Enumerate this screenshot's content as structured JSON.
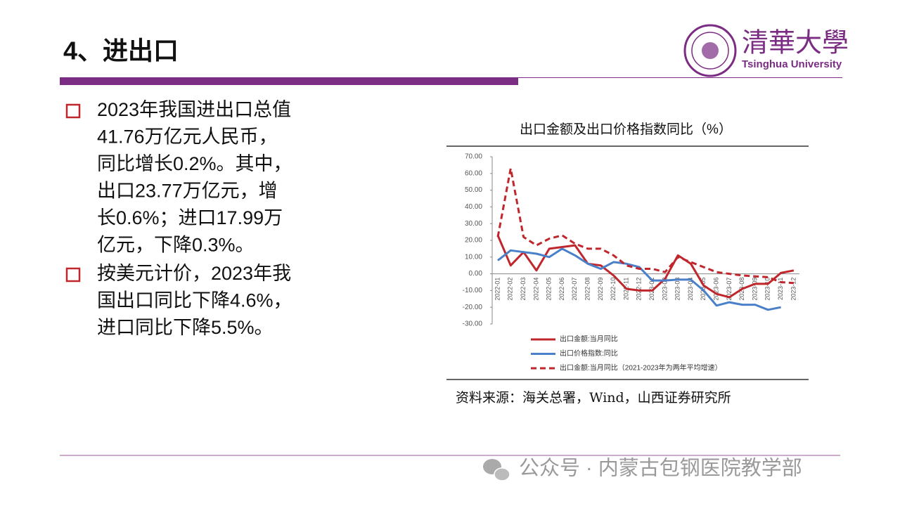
{
  "header": {
    "title": "4、进出口",
    "logo_cn": "清華大學",
    "logo_en": "Tsinghua University"
  },
  "bullets": [
    {
      "lines": [
        "2023年我国进出口总值",
        "41.76万亿元人民币，",
        "同比增长0.2%。其中，",
        "出口23.77万亿元，增",
        "长0.6%；进口17.99万",
        "亿元，下降0.3%。"
      ]
    },
    {
      "lines": [
        "按美元计价，2023年我",
        "国出口同比下降4.6%，",
        "进口同比下降5.5%。"
      ]
    }
  ],
  "chart_data": {
    "type": "line",
    "title": "出口金额及出口价格指数同比（%）",
    "source": "资料来源：海关总署，Wind，山西证券研究所",
    "categories": [
      "2022-01",
      "2022-02",
      "2022-03",
      "2022-04",
      "2022-05",
      "2022-06",
      "2022-07",
      "2022-08",
      "2022-09",
      "2022-10",
      "2022-11",
      "2022-12",
      "2023-01",
      "2023-02",
      "2023-03",
      "2023-04",
      "2023-05",
      "2023-06",
      "2023-07",
      "2023-08",
      "2023-09",
      "2023-10",
      "2023-11",
      "2023-12"
    ],
    "ylim": [
      -30,
      70
    ],
    "yticks": [
      {
        "value": -30,
        "label": "-30.00"
      },
      {
        "value": -20,
        "label": "-20.00"
      },
      {
        "value": -10,
        "label": "-10.00"
      },
      {
        "value": 0,
        "label": "0.00"
      },
      {
        "value": 10,
        "label": "10.00"
      },
      {
        "value": 20,
        "label": "20.00"
      },
      {
        "value": 30,
        "label": "30.00"
      },
      {
        "value": 40,
        "label": "40.00"
      },
      {
        "value": 50,
        "label": "50.00"
      },
      {
        "value": 60,
        "label": "60.00"
      },
      {
        "value": 70,
        "label": "70.00"
      }
    ],
    "grid": false,
    "series": [
      {
        "name": "出口金额:当月同比",
        "color": "#c0272d",
        "dash": false,
        "values": [
          23,
          5,
          13,
          2,
          15,
          16,
          17,
          6,
          5,
          -1,
          -9,
          -10,
          -10,
          -3,
          11,
          6,
          -7,
          -12,
          -14,
          -9,
          -6,
          -6,
          0.5,
          2
        ]
      },
      {
        "name": "出口价格指数:同比",
        "color": "#4a7fc9",
        "dash": false,
        "values": [
          8,
          14,
          13,
          12,
          10,
          15,
          11,
          6,
          3,
          7,
          6,
          4,
          -4,
          -4,
          -3.5,
          -3.5,
          -10,
          -19,
          -17,
          -18.5,
          -18.5,
          -21.5,
          -20,
          null
        ]
      },
      {
        "name": "出口金额:当月同比（2021-2023年为两年平均增速）",
        "color": "#c0272d",
        "dash": true,
        "values": [
          22,
          63,
          22,
          17,
          21,
          23,
          18,
          15,
          15,
          11,
          5,
          3,
          3,
          1,
          10,
          7,
          4,
          1,
          0,
          -1,
          -1.5,
          -2,
          -5,
          -5.5
        ]
      }
    ]
  },
  "footer": {
    "watermark": "公众号 · 内蒙古包钢医院教学部"
  }
}
